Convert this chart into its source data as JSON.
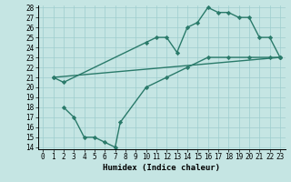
{
  "line1_x": [
    1,
    2,
    10,
    11,
    12,
    13,
    14,
    15,
    16,
    17,
    18,
    19,
    20,
    21,
    22,
    23
  ],
  "line1_y": [
    21,
    20.5,
    24.5,
    25,
    25,
    23.5,
    26,
    26.5,
    28,
    27.5,
    27.5,
    27,
    27,
    25,
    25,
    23
  ],
  "line2_x": [
    1,
    23
  ],
  "line2_y": [
    21,
    23
  ],
  "line3_x": [
    2,
    3,
    4,
    5,
    6,
    7,
    7.5,
    10,
    12,
    14,
    16,
    18,
    20,
    22,
    23
  ],
  "line3_y": [
    18,
    17,
    15,
    15,
    14.5,
    14,
    16.5,
    20,
    21,
    22,
    23,
    23,
    23,
    23,
    23
  ],
  "color": "#2a7a6a",
  "bg_color": "#c5e5e3",
  "grid_color": "#9ecece",
  "xlabel": "Humidex (Indice chaleur)",
  "ylim": [
    14,
    28
  ],
  "xlim": [
    -0.5,
    23.5
  ],
  "yticks": [
    14,
    15,
    16,
    17,
    18,
    19,
    20,
    21,
    22,
    23,
    24,
    25,
    26,
    27,
    28
  ],
  "xticks": [
    0,
    1,
    2,
    3,
    4,
    5,
    6,
    7,
    8,
    9,
    10,
    11,
    12,
    13,
    14,
    15,
    16,
    17,
    18,
    19,
    20,
    21,
    22,
    23
  ],
  "marker": "D",
  "markersize": 2.2,
  "linewidth": 1.0,
  "tick_fontsize": 5.5,
  "xlabel_fontsize": 6.5
}
